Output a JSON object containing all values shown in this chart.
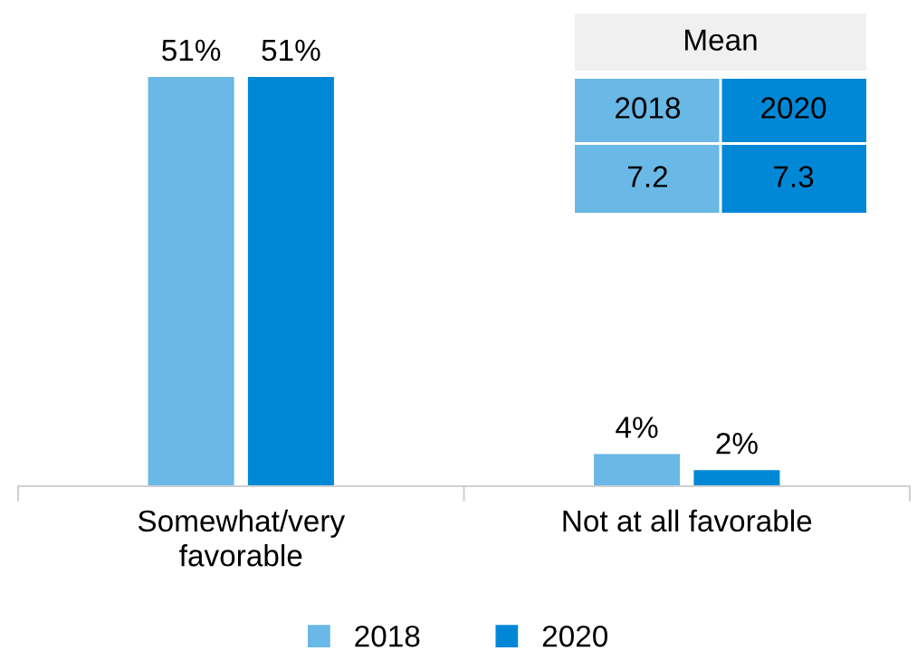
{
  "chart_data": [
    {
      "type": "bar",
      "categories": [
        "Somewhat/very\nfavorable",
        "Not at all favorable"
      ],
      "series": [
        {
          "name": "2018",
          "color": "#69b8e6",
          "values": [
            51,
            4
          ],
          "value_labels": [
            "51%",
            "4%"
          ]
        },
        {
          "name": "2020",
          "color": "#0088d6",
          "values": [
            51,
            2
          ],
          "value_labels": [
            "51%",
            "2%"
          ]
        }
      ],
      "legend": "bottom",
      "grid": false
    },
    {
      "type": "other",
      "title": "Mean",
      "categories": [
        "2018",
        "2020"
      ],
      "values": [
        7.2,
        7.3
      ],
      "colors": [
        "#69b8e6",
        "#0088d6"
      ],
      "data_labels": true
    }
  ]
}
